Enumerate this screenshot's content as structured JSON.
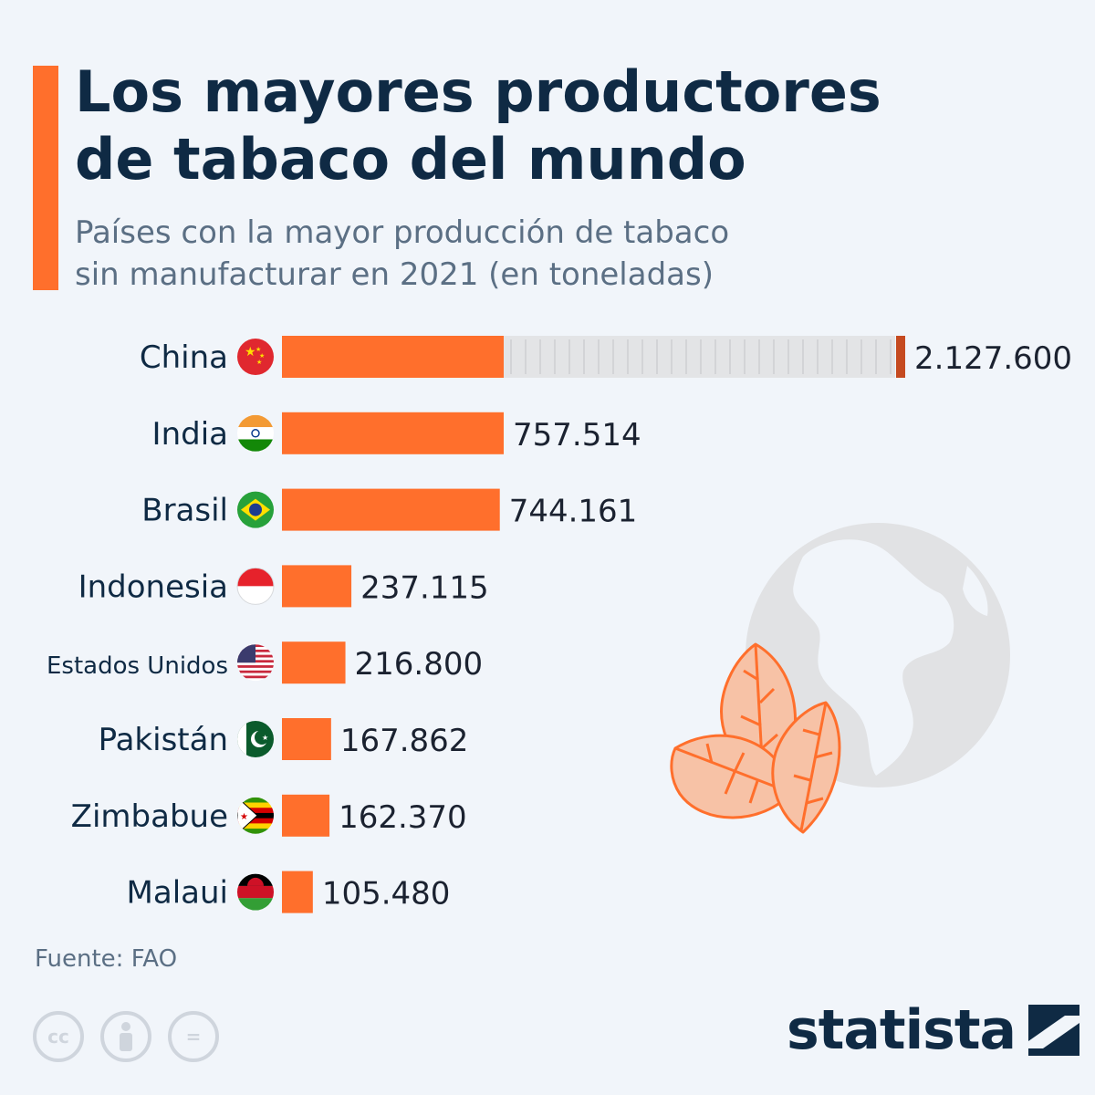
{
  "header": {
    "title_line1": "Los mayores productores",
    "title_line2": "de tabaco del mundo",
    "subtitle_line1": "Países con la mayor producción de tabaco",
    "subtitle_line2": "sin manufacturar en 2021 (en toneladas)"
  },
  "colors": {
    "bar": "#ff6f2c",
    "bar_broken_end": "#c54a20",
    "track": "#e3e4e6",
    "label": "#0f2a44",
    "title": "#0f2a44",
    "muted": "#5b6f84"
  },
  "chart_data": {
    "type": "bar",
    "orientation": "horizontal",
    "categories": [
      "China",
      "India",
      "Brasil",
      "Indonesia",
      "Estados Unidos",
      "Pakistán",
      "Zimbabue",
      "Malaui"
    ],
    "values": [
      2127600,
      757514,
      744161,
      237115,
      216800,
      167862,
      162370,
      105480
    ],
    "value_labels": [
      "2.127.600",
      "757.514",
      "744.161",
      "237.115",
      "216.800",
      "167.862",
      "162.370",
      "105.480"
    ],
    "flags": [
      "china-flag-icon",
      "india-flag-icon",
      "brazil-flag-icon",
      "indonesia-flag-icon",
      "usa-flag-icon",
      "pakistan-flag-icon",
      "zimbabwe-flag-icon",
      "malawi-flag-icon"
    ],
    "broken_axis_category": "China",
    "title": "Los mayores productores de tabaco del mundo",
    "xlabel": "",
    "ylabel": ""
  },
  "footer": {
    "source": "Fuente: FAO",
    "brand": "statista",
    "license_icons": [
      "cc-icon",
      "attribution-icon",
      "no-derivatives-icon"
    ],
    "license_texts": [
      "cc",
      "=",
      ""
    ]
  },
  "illustration": [
    "globe-icon",
    "tobacco-leaf-icon"
  ]
}
